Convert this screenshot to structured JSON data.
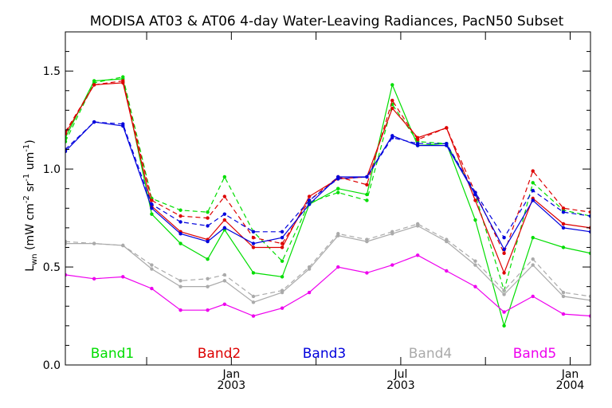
{
  "chart_data": {
    "type": "line",
    "title": "MODISA AT03 & AT06 4-day Water-Leaving Radiances, PacN50 Subset",
    "ylabel": "Lwn (mW cm⁻² sr⁻¹ um⁻¹)",
    "ylabel_parts": {
      "main": "L",
      "sub": "wn",
      "units_open": " (mW cm",
      "e1": "-2",
      "sr": " sr",
      "e2": "-1",
      "um": " um",
      "e3": "-1",
      "close": ")"
    },
    "ylim": [
      0,
      1.7
    ],
    "yticks": [
      {
        "value": 0.0,
        "label": "0.0"
      },
      {
        "value": 0.5,
        "label": "0.5"
      },
      {
        "value": 1.0,
        "label": "1.0"
      },
      {
        "value": 1.5,
        "label": "1.5"
      }
    ],
    "xlim": [
      0,
      31
    ],
    "x_major_ticks": [
      {
        "pos": 9.8,
        "line1": "Jan",
        "line2": "2003"
      },
      {
        "pos": 19.8,
        "line1": "Jul",
        "line2": "2003"
      },
      {
        "pos": 29.8,
        "line1": "Jan",
        "line2": "2004"
      }
    ],
    "x_minor_ticks": [
      4.8,
      14.8,
      24.8
    ],
    "x": [
      0,
      1.7,
      3.4,
      5.1,
      6.8,
      8.4,
      9.4,
      11.1,
      12.8,
      14.4,
      16.1,
      17.8,
      19.3,
      20.8,
      22.5,
      24.2,
      25.9,
      27.6,
      29.4,
      31
    ],
    "series": [
      {
        "name": "Band1",
        "color": "#00dd00",
        "dashed": false,
        "values": [
          1.16,
          1.45,
          1.46,
          0.77,
          0.62,
          0.54,
          0.69,
          0.47,
          0.45,
          0.82,
          0.9,
          0.87,
          1.43,
          1.12,
          1.13,
          0.74,
          0.2,
          0.65,
          0.6,
          0.57
        ]
      },
      {
        "name": "",
        "color": "#00dd00",
        "dashed": true,
        "values": [
          1.14,
          1.44,
          1.47,
          0.85,
          0.79,
          0.78,
          0.96,
          0.68,
          0.53,
          0.83,
          0.88,
          0.84,
          1.33,
          1.14,
          1.13,
          0.87,
          0.38,
          0.93,
          0.79,
          0.76
        ]
      },
      {
        "name": "Band2",
        "color": "#dd0000",
        "dashed": false,
        "values": [
          1.18,
          1.43,
          1.44,
          0.81,
          0.68,
          0.64,
          0.74,
          0.6,
          0.6,
          0.86,
          0.95,
          0.96,
          1.31,
          1.16,
          1.21,
          0.84,
          0.47,
          0.85,
          0.72,
          0.7
        ]
      },
      {
        "name": "",
        "color": "#dd0000",
        "dashed": true,
        "values": [
          1.19,
          1.43,
          1.45,
          0.84,
          0.76,
          0.75,
          0.86,
          0.65,
          0.62,
          0.84,
          0.96,
          0.92,
          1.35,
          1.15,
          1.21,
          0.88,
          0.57,
          0.99,
          0.8,
          0.78
        ]
      },
      {
        "name": "Band3",
        "color": "#0000dd",
        "dashed": false,
        "values": [
          1.09,
          1.24,
          1.22,
          0.8,
          0.67,
          0.63,
          0.7,
          0.62,
          0.65,
          0.82,
          0.96,
          0.96,
          1.17,
          1.12,
          1.12,
          0.87,
          0.59,
          0.84,
          0.7,
          0.68
        ]
      },
      {
        "name": "",
        "color": "#0000dd",
        "dashed": true,
        "values": [
          1.1,
          1.24,
          1.23,
          0.82,
          0.73,
          0.71,
          0.77,
          0.68,
          0.68,
          0.84,
          0.95,
          0.96,
          1.16,
          1.13,
          1.13,
          0.88,
          0.65,
          0.89,
          0.78,
          0.76
        ]
      },
      {
        "name": "Band4",
        "color": "#aaaaaa",
        "dashed": false,
        "values": [
          0.62,
          0.62,
          0.61,
          0.49,
          0.4,
          0.4,
          0.43,
          0.32,
          0.37,
          0.49,
          0.66,
          0.63,
          0.67,
          0.71,
          0.63,
          0.51,
          0.36,
          0.51,
          0.35,
          0.33
        ]
      },
      {
        "name": "",
        "color": "#aaaaaa",
        "dashed": true,
        "values": [
          0.63,
          0.62,
          0.61,
          0.51,
          0.43,
          0.44,
          0.46,
          0.35,
          0.38,
          0.5,
          0.67,
          0.64,
          0.68,
          0.72,
          0.64,
          0.53,
          0.38,
          0.54,
          0.37,
          0.35
        ]
      },
      {
        "name": "Band5",
        "color": "#ee00ee",
        "dashed": false,
        "values": [
          0.46,
          0.44,
          0.45,
          0.39,
          0.28,
          0.28,
          0.31,
          0.25,
          0.29,
          0.37,
          0.5,
          0.47,
          0.51,
          0.56,
          0.48,
          0.4,
          0.27,
          0.35,
          0.26,
          0.25
        ]
      }
    ],
    "legend": [
      "Band1",
      "Band2",
      "Band3",
      "Band4",
      "Band5"
    ],
    "legend_placement": "bottom inside plot",
    "grid": false
  }
}
